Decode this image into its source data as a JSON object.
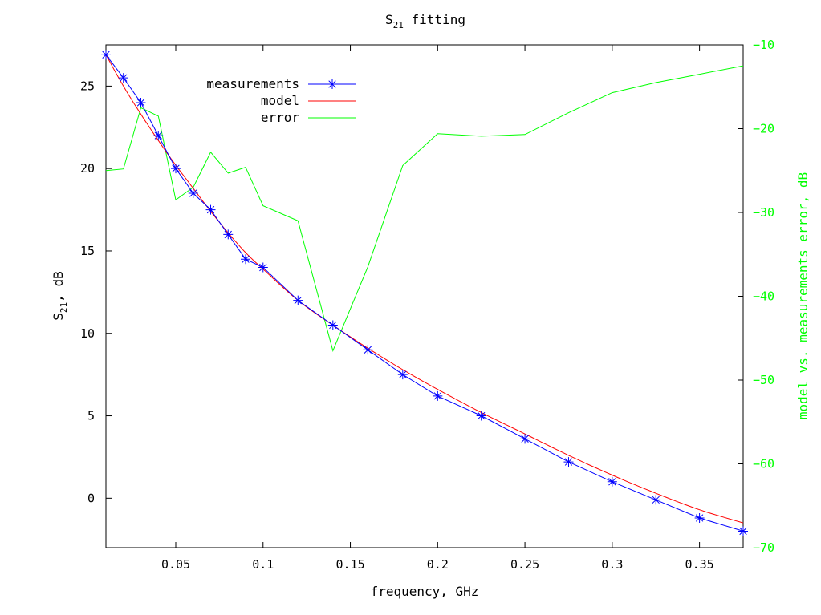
{
  "chart_data": {
    "type": "line",
    "title": "S",
    "title_sub": "21",
    "title_rest": " fitting",
    "xlabel": "frequency, GHz",
    "ylabel": "S",
    "ylabel_sub": "21",
    "ylabel_rest": ", dB",
    "y2label": "model vs. measurements error, dB",
    "xlim": [
      0.01,
      0.375
    ],
    "ylim": [
      -3,
      27.5
    ],
    "y2lim": [
      -70,
      -10
    ],
    "x_ticks": [
      0.05,
      0.1,
      0.15,
      0.2,
      0.25,
      0.3,
      0.35
    ],
    "x_tick_labels": [
      "0.05",
      "0.1",
      "0.15",
      "0.2",
      "0.25",
      "0.3",
      "0.35"
    ],
    "y_ticks": [
      0,
      5,
      10,
      15,
      20,
      25
    ],
    "y_tick_labels": [
      "0",
      "5",
      "10",
      "15",
      "20",
      "25"
    ],
    "y2_ticks": [
      -70,
      -60,
      -50,
      -40,
      -30,
      -20,
      -10
    ],
    "y2_tick_labels": [
      "−70",
      "−60",
      "−50",
      "−40",
      "−30",
      "−20",
      "−10"
    ],
    "grid": false,
    "legend_position": "top-left",
    "series": [
      {
        "name": "measurements",
        "axis": "left",
        "color": "#0000ff",
        "marker": "asterisk",
        "x": [
          0.01,
          0.02,
          0.03,
          0.04,
          0.05,
          0.06,
          0.07,
          0.08,
          0.09,
          0.1,
          0.12,
          0.14,
          0.16,
          0.18,
          0.2,
          0.225,
          0.25,
          0.275,
          0.3,
          0.325,
          0.35,
          0.375
        ],
        "y": [
          26.9,
          25.5,
          24.0,
          22.0,
          20.0,
          18.5,
          17.5,
          16.0,
          14.5,
          14.0,
          12.0,
          10.5,
          9.0,
          7.5,
          6.2,
          5.0,
          3.6,
          2.2,
          1.0,
          -0.1,
          -1.2,
          -2.0
        ]
      },
      {
        "name": "model",
        "axis": "left",
        "color": "#ff0000",
        "x": [
          0.01,
          0.02,
          0.03,
          0.04,
          0.05,
          0.06,
          0.07,
          0.08,
          0.09,
          0.1,
          0.12,
          0.14,
          0.16,
          0.18,
          0.2,
          0.225,
          0.25,
          0.275,
          0.3,
          0.325,
          0.35,
          0.375
        ],
        "y": [
          26.9,
          25.0,
          23.3,
          21.7,
          20.2,
          18.8,
          17.4,
          16.1,
          14.9,
          13.9,
          12.0,
          10.5,
          9.1,
          7.8,
          6.6,
          5.2,
          3.9,
          2.6,
          1.4,
          0.3,
          -0.7,
          -1.5
        ]
      },
      {
        "name": "error",
        "axis": "right",
        "color": "#00ff00",
        "x": [
          0.01,
          0.02,
          0.03,
          0.04,
          0.05,
          0.06,
          0.07,
          0.08,
          0.09,
          0.1,
          0.12,
          0.14,
          0.16,
          0.18,
          0.2,
          0.225,
          0.25,
          0.275,
          0.3,
          0.325,
          0.35,
          0.375
        ],
        "y": [
          -25.0,
          -24.8,
          -17.5,
          -18.5,
          -28.5,
          -27.0,
          -22.8,
          -25.3,
          -24.6,
          -29.2,
          -31.0,
          -46.5,
          -36.5,
          -24.4,
          -20.6,
          -20.9,
          -20.7,
          -18.1,
          -15.7,
          -14.5,
          -13.5,
          -12.5
        ]
      }
    ]
  }
}
